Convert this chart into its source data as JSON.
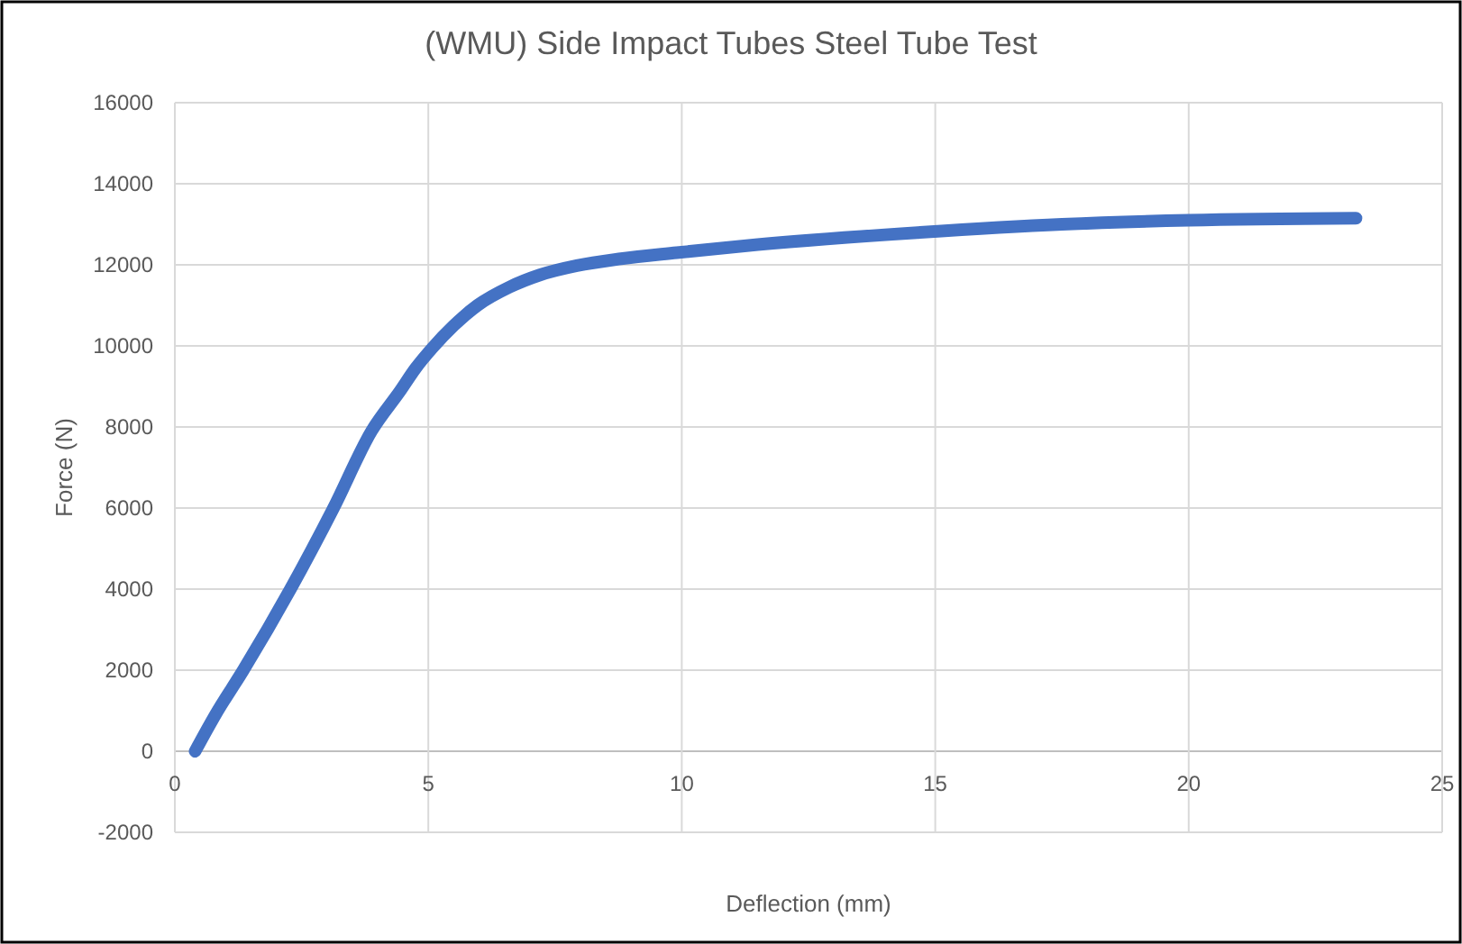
{
  "chart_data": {
    "type": "line",
    "title": "(WMU) Side Impact Tubes Steel Tube Test",
    "xlabel": "Deflection (mm)",
    "ylabel": "Force (N)",
    "x": [
      0.4,
      0.8,
      1.35,
      2.28,
      3.13,
      3.88,
      4.45,
      4.75,
      5.08,
      5.5,
      5.97,
      6.6,
      7.2,
      7.93,
      8.8,
      9.9,
      11.5,
      14.7,
      17.5,
      20,
      23.3
    ],
    "series": [
      {
        "color": "#4472c4",
        "values": [
          0,
          900,
          2000,
          4000,
          6000,
          7900,
          8900,
          9450,
          9950,
          10500,
          11000,
          11450,
          11750,
          11980,
          12150,
          12300,
          12500,
          12800,
          13000,
          13100,
          13150
        ]
      }
    ],
    "xlim": [
      0,
      25
    ],
    "xticks": [
      0,
      5,
      10,
      15,
      20,
      25
    ],
    "ylim": [
      -2000,
      16000
    ],
    "yticks": [
      -2000,
      0,
      2000,
      4000,
      6000,
      8000,
      10000,
      12000,
      14000,
      16000
    ],
    "grid": true,
    "marker": "none",
    "line_style": "solid"
  }
}
